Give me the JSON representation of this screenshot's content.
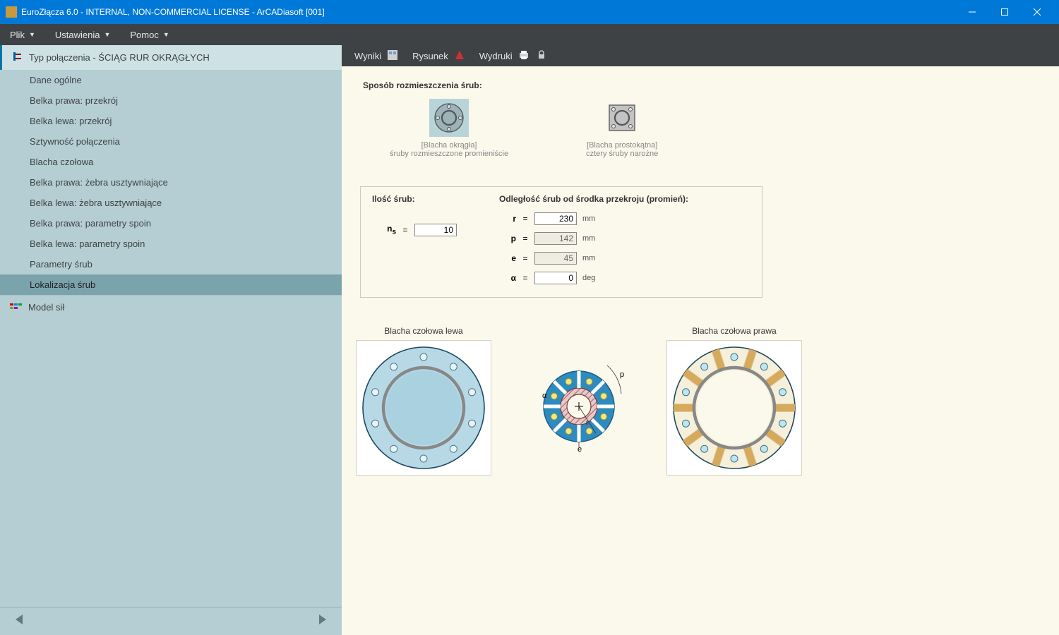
{
  "title": "EuroZłącza 6.0 - INTERNAL, NON-COMMERCIAL LICENSE - ArCADiasoft [001]",
  "menubar": {
    "plik": "Plik",
    "ustawienia": "Ustawienia",
    "pomoc": "Pomoc"
  },
  "toolbar": {
    "wyniki": "Wyniki",
    "rysunek": "Rysunek",
    "wydruki": "Wydruki"
  },
  "sidebar": {
    "header": "Typ połączenia - ŚCIĄG RUR OKRĄGŁYCH",
    "items": [
      "Dane ogólne",
      "Belka prawa: przekrój",
      "Belka lewa: przekrój",
      "Sztywność połączenia",
      "Blacha czołowa",
      "Belka prawa: żebra usztywniające",
      "Belka lewa: żebra usztywniające",
      "Belka prawa: parametry spoin",
      "Belka lewa: parametry spoin",
      "Parametry śrub",
      "Lokalizacja śrub"
    ],
    "selected_index": 10,
    "model": "Model sił"
  },
  "main": {
    "section1_title": "Sposób rozmieszczenia śrub:",
    "option_round": {
      "line1": "[Blacha okrągła]",
      "line2": "śruby rozmieszczone promieniście"
    },
    "option_rect": {
      "line1": "[Blacha prostokątna]",
      "line2": "cztery śruby narożne"
    },
    "panel": {
      "left_label": "Ilość śrub:",
      "right_label": "Odległość śrub od środka przekroju (promień):",
      "ns_sym": "n",
      "ns_sub": "s",
      "ns_val": "10",
      "rows": [
        {
          "sym": "r",
          "val": "230",
          "unit": "mm",
          "readonly": false
        },
        {
          "sym": "p",
          "val": "142",
          "unit": "mm",
          "readonly": true
        },
        {
          "sym": "e",
          "val": "45",
          "unit": "mm",
          "readonly": true
        },
        {
          "sym": "α",
          "val": "0",
          "unit": "deg",
          "readonly": false
        }
      ]
    },
    "fig_left": "Blacha czołowa lewa",
    "fig_right": "Blacha czołowa prawa",
    "dims": {
      "p": "p",
      "alpha": "α",
      "e": "e",
      "r": "r"
    }
  },
  "colors": {
    "titlebar": "#0078d7",
    "menubar": "#3f4245",
    "sidebar": "#b4ced3",
    "sidebar_header": "#cee2e5",
    "sidebar_sel": "#7ba3ac",
    "work": "#fbf8ec",
    "plate_left_bg": "#b6d9e5",
    "plate_left_inner": "#a9d1e0",
    "plate_right_bg": "#f6efd9",
    "plate_right_rib": "#d6aa5a",
    "mid_blue": "#2e8bc0",
    "mid_hole": "#f0e97e"
  }
}
